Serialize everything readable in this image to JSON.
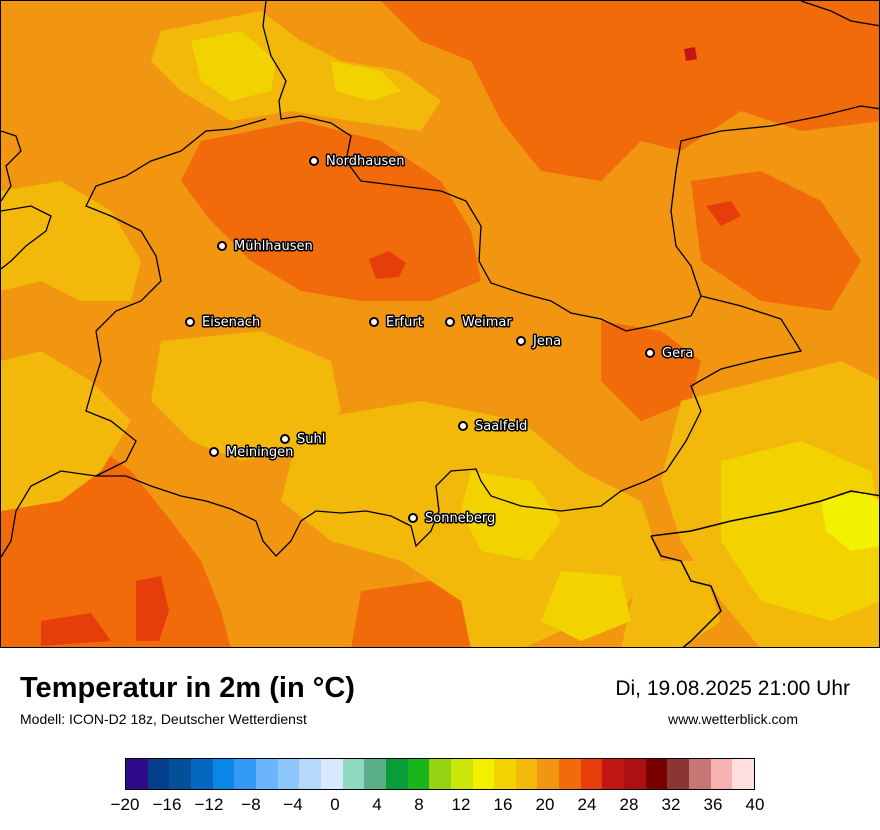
{
  "title": "Temperatur in 2m (in °C)",
  "model": "Modell: ICON-D2 18z, Deutscher Wetterdienst",
  "datetime": "Di, 19.08.2025 21:00 Uhr",
  "website": "www.wetterblick.com",
  "cities": [
    {
      "name": "Nordhausen"
    },
    {
      "name": "Mühlhausen"
    },
    {
      "name": "Eisenach"
    },
    {
      "name": "Erfurt"
    },
    {
      "name": "Weimar"
    },
    {
      "name": "Jena"
    },
    {
      "name": "Gera"
    },
    {
      "name": "Suhl"
    },
    {
      "name": "Meiningen"
    },
    {
      "name": "Saalfeld"
    },
    {
      "name": "Sonneberg"
    }
  ],
  "colorbar": {
    "colors": [
      "#2f0a8a",
      "#053f8c",
      "#034f9a",
      "#0568c0",
      "#0b85e8",
      "#3299f5",
      "#6ab5fb",
      "#8ec8fb",
      "#b4d9fb",
      "#d8e9fd",
      "#8fd9c0",
      "#5aae8a",
      "#0a9c3b",
      "#1ab51a",
      "#96d413",
      "#cce50a",
      "#f2f200",
      "#f2d300",
      "#f2b80a",
      "#f29510",
      "#f26b0a",
      "#e63e0a",
      "#c21515",
      "#ad1010",
      "#7a0000",
      "#8c3535",
      "#c77575",
      "#f7b2b2",
      "#ffdede"
    ],
    "ticks": [
      "−20",
      "−16",
      "−12",
      "−8",
      "−4",
      "0",
      "4",
      "8",
      "12",
      "16",
      "20",
      "24",
      "28",
      "32",
      "36",
      "40"
    ]
  }
}
